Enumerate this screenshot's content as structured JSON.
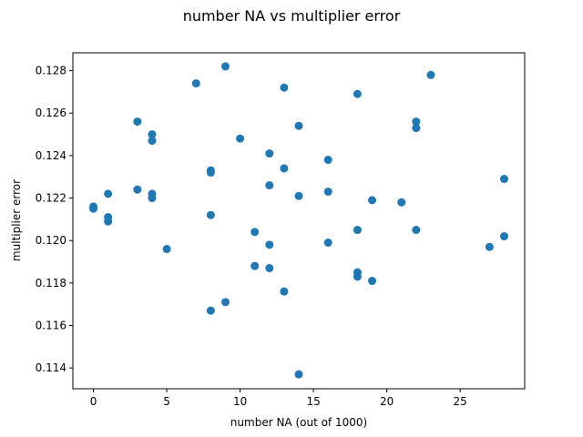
{
  "chart_data": {
    "type": "scatter",
    "title": "number NA vs multiplier error",
    "xlabel": "number NA (out of 1000)",
    "ylabel": "multiplier error",
    "xlim": [
      -1.4,
      29.4
    ],
    "ylim": [
      0.11302,
      0.12884
    ],
    "xticks": [
      0,
      5,
      10,
      15,
      20,
      25
    ],
    "yticks": [
      0.114,
      0.116,
      0.118,
      0.12,
      0.122,
      0.124,
      0.126,
      0.128
    ],
    "marker_color": "#1f77b4",
    "grid": false,
    "series": [
      {
        "points": [
          [
            0,
            0.1216
          ],
          [
            0,
            0.1215
          ],
          [
            1,
            0.1222
          ],
          [
            1,
            0.1211
          ],
          [
            1,
            0.1209
          ],
          [
            3,
            0.1256
          ],
          [
            3,
            0.1224
          ],
          [
            4,
            0.125
          ],
          [
            4,
            0.1247
          ],
          [
            4,
            0.1222
          ],
          [
            4,
            0.122
          ],
          [
            5,
            0.1196
          ],
          [
            7,
            0.1274
          ],
          [
            8,
            0.1233
          ],
          [
            8,
            0.1232
          ],
          [
            8,
            0.1212
          ],
          [
            8,
            0.1167
          ],
          [
            9,
            0.1282
          ],
          [
            9,
            0.1171
          ],
          [
            10,
            0.1248
          ],
          [
            11,
            0.1204
          ],
          [
            11,
            0.1188
          ],
          [
            12,
            0.1241
          ],
          [
            12,
            0.1226
          ],
          [
            12,
            0.1198
          ],
          [
            12,
            0.1187
          ],
          [
            13,
            0.1272
          ],
          [
            13,
            0.1234
          ],
          [
            13,
            0.1176
          ],
          [
            14,
            0.1254
          ],
          [
            14,
            0.1221
          ],
          [
            14,
            0.1137
          ],
          [
            16,
            0.1238
          ],
          [
            16,
            0.1223
          ],
          [
            16,
            0.1199
          ],
          [
            18,
            0.1269
          ],
          [
            18,
            0.1205
          ],
          [
            18,
            0.1185
          ],
          [
            18,
            0.1183
          ],
          [
            19,
            0.1219
          ],
          [
            19,
            0.1181
          ],
          [
            21,
            0.1218
          ],
          [
            22,
            0.1256
          ],
          [
            22,
            0.1253
          ],
          [
            22,
            0.1205
          ],
          [
            23,
            0.1278
          ],
          [
            27,
            0.1197
          ],
          [
            28,
            0.1229
          ],
          [
            28,
            0.1202
          ]
        ]
      }
    ]
  }
}
